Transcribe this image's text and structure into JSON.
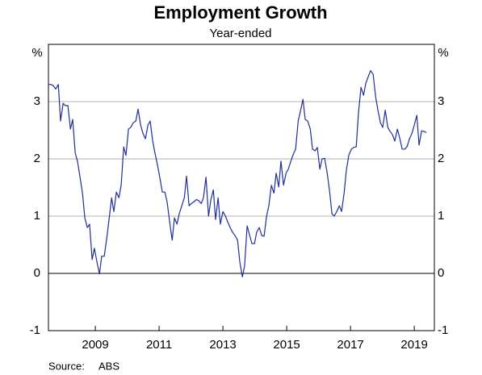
{
  "chart_data": {
    "type": "line",
    "title": "Employment Growth",
    "subtitle": "Year-ended",
    "y_unit_left": "%",
    "y_unit_right": "%",
    "source_label": "Source:",
    "source": "ABS",
    "xlim": [
      2007.53,
      2019.63
    ],
    "xticks": [
      2009,
      2011,
      2013,
      2015,
      2017,
      2019
    ],
    "ylim": [
      -1,
      4
    ],
    "yticks": [
      -1,
      0,
      1,
      2,
      3
    ],
    "grid": true,
    "x": [
      2007.53,
      2007.61,
      2007.68,
      2007.76,
      2007.84,
      2007.91,
      2007.99,
      2008.06,
      2008.14,
      2008.22,
      2008.29,
      2008.37,
      2008.44,
      2008.52,
      2008.6,
      2008.67,
      2008.75,
      2008.82,
      2008.9,
      2008.97,
      2009.05,
      2009.13,
      2009.2,
      2009.28,
      2009.36,
      2009.43,
      2009.51,
      2009.58,
      2009.66,
      2009.74,
      2009.81,
      2009.89,
      2009.96,
      2010.04,
      2010.11,
      2010.19,
      2010.27,
      2010.34,
      2010.42,
      2010.49,
      2010.57,
      2010.65,
      2010.72,
      2010.8,
      2010.87,
      2010.95,
      2011.03,
      2011.1,
      2011.18,
      2011.25,
      2011.33,
      2011.41,
      2011.48,
      2011.56,
      2011.63,
      2011.71,
      2011.79,
      2011.86,
      2011.94,
      2012.01,
      2012.09,
      2012.17,
      2012.24,
      2012.32,
      2012.39,
      2012.47,
      2012.55,
      2012.62,
      2012.7,
      2012.77,
      2012.85,
      2012.92,
      2013.0,
      2013.08,
      2013.15,
      2013.23,
      2013.3,
      2013.38,
      2013.46,
      2013.53,
      2013.61,
      2013.68,
      2013.76,
      2013.84,
      2013.91,
      2013.99,
      2014.06,
      2014.14,
      2014.22,
      2014.29,
      2014.37,
      2014.44,
      2014.52,
      2014.6,
      2014.67,
      2014.75,
      2014.82,
      2014.9,
      2014.98,
      2015.05,
      2015.13,
      2015.2,
      2015.28,
      2015.36,
      2015.43,
      2015.51,
      2015.58,
      2015.66,
      2015.74,
      2015.81,
      2015.89,
      2015.96,
      2016.04,
      2016.11,
      2016.19,
      2016.27,
      2016.34,
      2016.42,
      2016.49,
      2016.57,
      2016.65,
      2016.72,
      2016.8,
      2016.87,
      2016.95,
      2017.03,
      2017.1,
      2017.18,
      2017.25,
      2017.33,
      2017.41,
      2017.48,
      2017.56,
      2017.63,
      2017.71,
      2017.79,
      2017.86,
      2017.94,
      2018.01,
      2018.09,
      2018.17,
      2018.24,
      2018.32,
      2018.39,
      2018.47,
      2018.55,
      2018.62,
      2018.7,
      2018.77,
      2018.85,
      2018.93,
      2019.0,
      2019.08,
      2019.15,
      2019.23,
      2019.3,
      2019.38
    ],
    "series": [
      {
        "name": "Employment growth",
        "color": "#1f2f9a",
        "values": [
          3.3,
          3.3,
          3.28,
          3.22,
          3.3,
          2.66,
          2.97,
          2.93,
          2.93,
          2.52,
          2.69,
          2.1,
          1.96,
          1.68,
          1.39,
          0.97,
          0.8,
          0.86,
          0.24,
          0.44,
          0.2,
          -0.01,
          0.3,
          0.3,
          0.62,
          0.94,
          1.32,
          1.08,
          1.42,
          1.32,
          1.54,
          2.21,
          2.06,
          2.52,
          2.55,
          2.63,
          2.66,
          2.87,
          2.59,
          2.45,
          2.35,
          2.59,
          2.66,
          2.31,
          2.1,
          1.89,
          1.65,
          1.42,
          1.42,
          1.25,
          0.9,
          0.58,
          0.97,
          0.86,
          1.04,
          1.18,
          1.32,
          1.7,
          1.18,
          1.22,
          1.25,
          1.29,
          1.27,
          1.22,
          1.32,
          1.68,
          1.0,
          1.28,
          1.46,
          0.94,
          1.32,
          0.86,
          1.08,
          1.0,
          0.9,
          0.8,
          0.72,
          0.66,
          0.58,
          0.2,
          -0.06,
          0.13,
          0.83,
          0.66,
          0.52,
          0.52,
          0.72,
          0.8,
          0.66,
          0.65,
          1.0,
          1.18,
          1.54,
          1.4,
          1.75,
          1.51,
          1.96,
          1.54,
          1.75,
          1.82,
          1.96,
          2.07,
          2.17,
          2.66,
          2.83,
          3.04,
          2.69,
          2.66,
          2.52,
          2.17,
          2.14,
          2.2,
          1.82,
          2.0,
          2.01,
          1.75,
          1.46,
          1.04,
          1.0,
          1.08,
          1.18,
          1.08,
          1.4,
          1.8,
          2.07,
          2.17,
          2.2,
          2.21,
          2.8,
          3.25,
          3.11,
          3.32,
          3.44,
          3.54,
          3.48,
          3.08,
          2.85,
          2.63,
          2.55,
          2.85,
          2.55,
          2.48,
          2.42,
          2.31,
          2.52,
          2.35,
          2.17,
          2.17,
          2.21,
          2.35,
          2.45,
          2.59,
          2.76,
          2.24,
          2.49,
          2.48,
          2.46
        ]
      }
    ]
  }
}
